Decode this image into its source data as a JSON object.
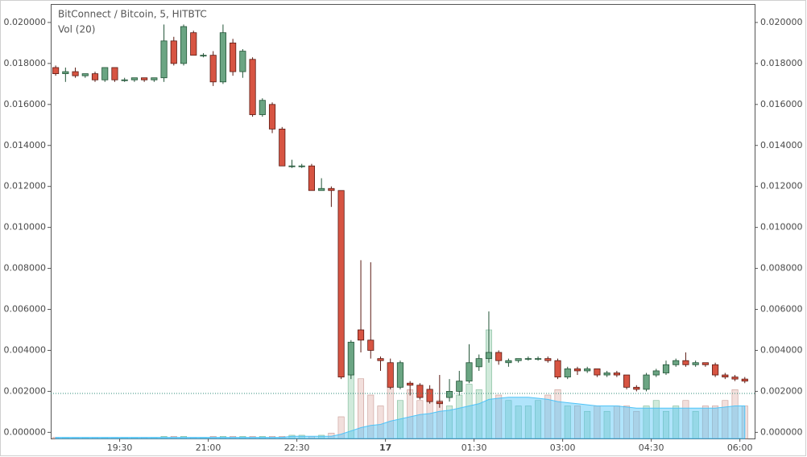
{
  "chart_data": {
    "type": "candlestick",
    "title": "BitConnect / Bitcoin, 5, HITBTC",
    "volume_label": "Vol (20)",
    "up_color": "#6ba583",
    "down_color": "#d75442",
    "price_line": 0.0019,
    "xlim": [
      0,
      715
    ],
    "xticks": [
      {
        "value": 70,
        "label": "19:30"
      },
      {
        "value": 160,
        "label": "21:00"
      },
      {
        "value": 250,
        "label": "22:30"
      },
      {
        "value": 340,
        "label": "17"
      },
      {
        "value": 430,
        "label": "01:30"
      },
      {
        "value": 520,
        "label": "03:00"
      },
      {
        "value": 610,
        "label": "04:30"
      },
      {
        "value": 700,
        "label": "06:00"
      }
    ],
    "ylim": [
      -0.0003,
      0.0209
    ],
    "yticks": [
      {
        "value": 0,
        "label": "0.000000"
      },
      {
        "value": 0.002,
        "label": "0.002000"
      },
      {
        "value": 0.004,
        "label": "0.004000"
      },
      {
        "value": 0.006,
        "label": "0.006000"
      },
      {
        "value": 0.008,
        "label": "0.008000"
      },
      {
        "value": 0.01,
        "label": "0.010000"
      },
      {
        "value": 0.012,
        "label": "0.012000"
      },
      {
        "value": 0.014,
        "label": "0.014000"
      },
      {
        "value": 0.016,
        "label": "0.016000"
      },
      {
        "value": 0.018,
        "label": "0.018000"
      },
      {
        "value": 0.02,
        "label": "0.020000"
      }
    ],
    "vol_ylim": [
      0,
      400
    ],
    "x": [
      5,
      15,
      25,
      35,
      45,
      55,
      65,
      75,
      85,
      95,
      105,
      115,
      125,
      135,
      145,
      155,
      165,
      175,
      185,
      195,
      205,
      215,
      225,
      235,
      245,
      255,
      265,
      275,
      285,
      295,
      305,
      315,
      325,
      335,
      345,
      355,
      365,
      375,
      385,
      395,
      405,
      415,
      425,
      435,
      445,
      455,
      465,
      475,
      485,
      495,
      505,
      515,
      525,
      535,
      545,
      555,
      565,
      575,
      585,
      595,
      605,
      615,
      625,
      635,
      645,
      655,
      665,
      675,
      685,
      695,
      705
    ],
    "open": [
      0.0178,
      0.0175,
      0.0176,
      0.0174,
      0.0175,
      0.0172,
      0.0178,
      0.0172,
      0.0172,
      0.0173,
      0.0172,
      0.0173,
      0.0191,
      0.018,
      0.0195,
      0.0184,
      0.0184,
      0.0171,
      0.019,
      0.0176,
      0.0182,
      0.0155,
      0.016,
      0.0148,
      0.013,
      0.013,
      0.013,
      0.0118,
      0.0119,
      0.0118,
      0.0028,
      0.005,
      0.0045,
      0.0036,
      0.0034,
      0.0022,
      0.0024,
      0.0023,
      0.0021,
      0.0015,
      0.0017,
      0.002,
      0.0025,
      0.0032,
      0.0036,
      0.0039,
      0.0034,
      0.0035,
      0.0036,
      0.0036,
      0.0036,
      0.0035,
      0.0027,
      0.0031,
      0.003,
      0.0031,
      0.0028,
      0.0029,
      0.0028,
      0.0022,
      0.0021,
      0.0028,
      0.0029,
      0.0033,
      0.0035,
      0.0033,
      0.0034,
      0.0033,
      0.0028,
      0.0027,
      0.0026
    ],
    "high": [
      0.0179,
      0.0178,
      0.0178,
      0.0175,
      0.0176,
      0.0178,
      0.0178,
      0.0173,
      0.0173,
      0.0173,
      0.0173,
      0.0199,
      0.0193,
      0.0199,
      0.0196,
      0.0185,
      0.0186,
      0.0199,
      0.0192,
      0.0187,
      0.0183,
      0.0163,
      0.0161,
      0.0149,
      0.0133,
      0.0131,
      0.0131,
      0.0124,
      0.012,
      0.0118,
      0.0045,
      0.0084,
      0.0083,
      0.0037,
      0.0036,
      0.0035,
      0.0025,
      0.0024,
      0.0023,
      0.0028,
      0.0026,
      0.003,
      0.0043,
      0.0038,
      0.0059,
      0.004,
      0.0036,
      0.0036,
      0.0037,
      0.0037,
      0.0037,
      0.0036,
      0.0032,
      0.0032,
      0.0032,
      0.0031,
      0.003,
      0.003,
      0.0028,
      0.0023,
      0.0029,
      0.0031,
      0.0035,
      0.0036,
      0.0039,
      0.0035,
      0.0034,
      0.0034,
      0.0029,
      0.0028,
      0.0027
    ],
    "low": [
      0.0174,
      0.0171,
      0.0173,
      0.0173,
      0.0171,
      0.0171,
      0.0171,
      0.0171,
      0.0171,
      0.0171,
      0.0171,
      0.0171,
      0.0179,
      0.0179,
      0.0184,
      0.0183,
      0.0169,
      0.017,
      0.0174,
      0.0173,
      0.0154,
      0.0154,
      0.0146,
      0.013,
      0.0129,
      0.0129,
      0.0118,
      0.0118,
      0.011,
      0.0026,
      0.0026,
      0.0039,
      0.0036,
      0.003,
      0.0021,
      0.0021,
      0.0018,
      0.0016,
      0.0014,
      0.0012,
      0.0015,
      0.0018,
      0.0024,
      0.003,
      0.0034,
      0.0033,
      0.0032,
      0.0034,
      0.0035,
      0.0035,
      0.0034,
      0.0026,
      0.0026,
      0.0028,
      0.0029,
      0.0027,
      0.0027,
      0.0027,
      0.0021,
      0.002,
      0.002,
      0.0027,
      0.0028,
      0.0032,
      0.0032,
      0.0032,
      0.0032,
      0.0027,
      0.0026,
      0.0025,
      0.0024
    ],
    "close": [
      0.0175,
      0.0176,
      0.0174,
      0.0175,
      0.0172,
      0.0178,
      0.0172,
      0.0172,
      0.0173,
      0.0172,
      0.0173,
      0.0191,
      0.018,
      0.0198,
      0.0184,
      0.0184,
      0.0171,
      0.0195,
      0.0176,
      0.0186,
      0.0155,
      0.0162,
      0.0148,
      0.013,
      0.013,
      0.013,
      0.0118,
      0.0119,
      0.0118,
      0.0027,
      0.0044,
      0.0045,
      0.004,
      0.0035,
      0.0022,
      0.0034,
      0.0023,
      0.0017,
      0.0015,
      0.0014,
      0.002,
      0.0025,
      0.0034,
      0.0036,
      0.0039,
      0.0035,
      0.0035,
      0.0036,
      0.0036,
      0.0036,
      0.0035,
      0.0027,
      0.0031,
      0.003,
      0.0031,
      0.0028,
      0.0029,
      0.0028,
      0.0022,
      0.0021,
      0.0028,
      0.003,
      0.0033,
      0.0035,
      0.0033,
      0.0034,
      0.0033,
      0.0028,
      0.0027,
      0.0026,
      0.0025
    ],
    "volume": [
      1,
      1,
      1,
      1,
      1,
      1,
      1,
      1,
      1,
      1,
      1,
      2,
      2,
      2,
      1,
      1,
      2,
      2,
      2,
      2,
      2,
      2,
      2,
      2,
      3,
      3,
      2,
      3,
      5,
      20,
      60,
      55,
      40,
      30,
      50,
      35,
      45,
      35,
      40,
      35,
      30,
      40,
      50,
      45,
      100,
      40,
      35,
      30,
      30,
      35,
      40,
      45,
      30,
      30,
      25,
      30,
      25,
      30,
      30,
      25,
      30,
      35,
      25,
      30,
      35,
      25,
      30,
      30,
      35,
      45,
      30
    ],
    "vol_ma": [
      1,
      1,
      1,
      1,
      1,
      1,
      1,
      1,
      1,
      1,
      1,
      1,
      1,
      1,
      1,
      1,
      1,
      1,
      1,
      1,
      1,
      1,
      1,
      1,
      2,
      2,
      2,
      2,
      2,
      4,
      7,
      10,
      12,
      13,
      16,
      18,
      20,
      22,
      23,
      25,
      26,
      28,
      30,
      32,
      36,
      37,
      38,
      38,
      38,
      37,
      36,
      34,
      33,
      32,
      31,
      30,
      30,
      30,
      29,
      28,
      28,
      28,
      28,
      28,
      28,
      28,
      28,
      28,
      29,
      30,
      30
    ]
  }
}
